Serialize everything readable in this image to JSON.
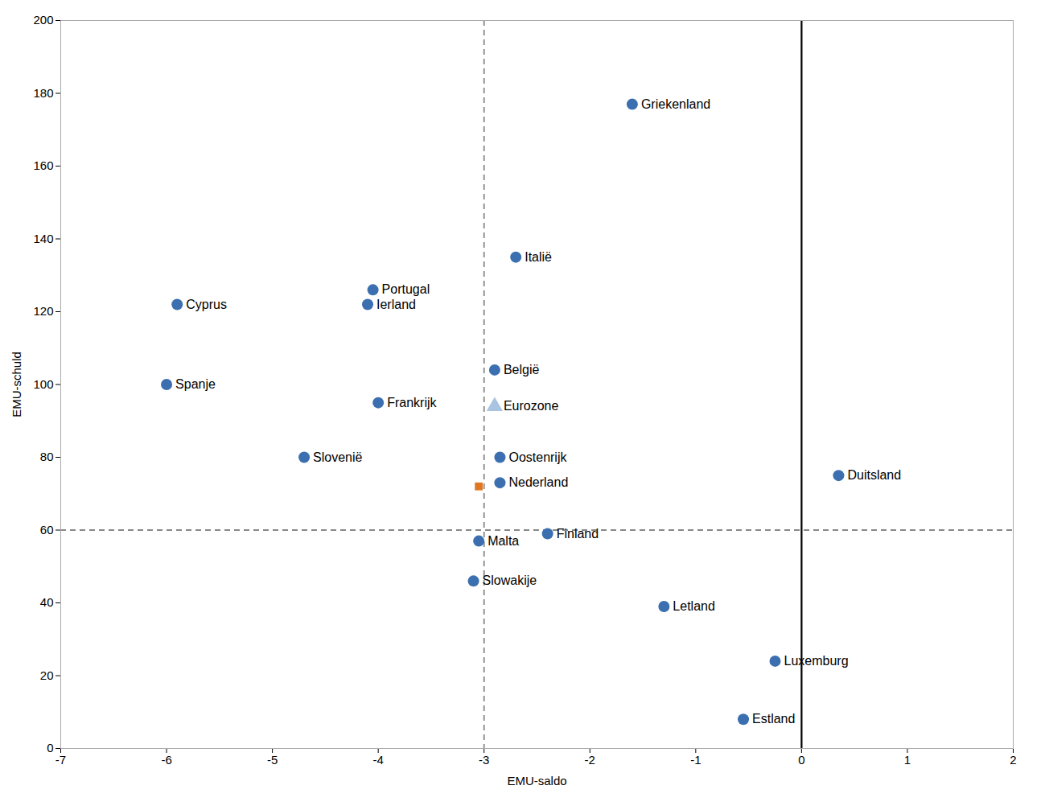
{
  "chart_data": {
    "type": "scatter",
    "xlabel": "EMU-saldo",
    "ylabel": "EMU-schuld",
    "xlim": [
      -7,
      2
    ],
    "ylim": [
      0,
      200
    ],
    "xticks": [
      -7,
      -6,
      -5,
      -4,
      -3,
      -2,
      -1,
      0,
      1,
      2
    ],
    "yticks": [
      0,
      20,
      40,
      60,
      80,
      100,
      120,
      140,
      160,
      180,
      200
    ],
    "grid": false,
    "reference_lines": [
      {
        "axis": "x",
        "value": -3,
        "line_style": "dashed",
        "color": "#888888"
      },
      {
        "axis": "y",
        "value": 60,
        "line_style": "dashed",
        "color": "#888888"
      },
      {
        "axis": "x",
        "value": 0,
        "line_style": "solid",
        "color": "black"
      }
    ],
    "series": [
      {
        "marker": "circle",
        "color": "#3b6faf",
        "labels": [
          "Griekenland",
          "Italië",
          "Cyprus",
          "Ierland",
          "Portugal",
          "Spanje",
          "België",
          "Frankrijk",
          "Slovenië",
          "Duitsland",
          "Oostenrijk",
          "Nederland",
          "Malta",
          "Finland",
          "Slowakije",
          "Letland",
          "Luxemburg",
          "Estland"
        ],
        "x": [
          -1.6,
          -2.7,
          -5.9,
          -4.1,
          -4.05,
          -6.0,
          -2.9,
          -4.0,
          -4.7,
          0.35,
          -2.85,
          -2.85,
          -3.05,
          -2.4,
          -3.1,
          -1.3,
          -0.25,
          -0.55
        ],
        "y": [
          177,
          135,
          122,
          122,
          126,
          100,
          104,
          95,
          80,
          75,
          80,
          73,
          57,
          59,
          46,
          39,
          24,
          8
        ]
      },
      {
        "marker": "triangle",
        "color": "#a8c4e0",
        "labels": [
          "Eurozone"
        ],
        "x": [
          -2.9
        ],
        "y": [
          94
        ]
      },
      {
        "marker": "square",
        "color": "#e07820",
        "x": [
          -3.05
        ],
        "y": [
          72
        ]
      }
    ]
  }
}
